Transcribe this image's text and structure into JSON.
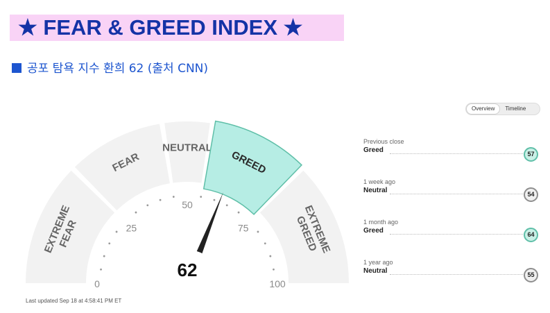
{
  "banner": {
    "title": "★ FEAR & GREED INDEX ★"
  },
  "subtitle": {
    "text": "공포 탐욕 지수 환희 62 (출처 CNN)"
  },
  "view_toggle": {
    "options": [
      "Overview",
      "Timeline"
    ],
    "selected": "Overview"
  },
  "gauge": {
    "value": 62,
    "min": 0,
    "max": 100,
    "ticks": [
      "0",
      "25",
      "50",
      "75",
      "100"
    ],
    "segments": [
      {
        "label_lines": [
          "EXTREME",
          "FEAR"
        ],
        "range": [
          0,
          25
        ]
      },
      {
        "label_lines": [
          "FEAR"
        ],
        "range": [
          25,
          45
        ]
      },
      {
        "label_lines": [
          "NEUTRAL"
        ],
        "range": [
          45,
          55
        ]
      },
      {
        "label_lines": [
          "GREED"
        ],
        "range": [
          55,
          75
        ]
      },
      {
        "label_lines": [
          "EXTREME",
          "GREED"
        ],
        "range": [
          75,
          100
        ]
      }
    ],
    "active_segment": 3,
    "colors": {
      "segment": "#f2f2f2",
      "active": "#b6ede4",
      "active_border": "#5fbfa8",
      "needle": "#222222",
      "label": "#666666"
    }
  },
  "history": [
    {
      "period": "Previous close",
      "rating": "Greed",
      "value": "57",
      "level": "greed"
    },
    {
      "period": "1 week ago",
      "rating": "Neutral",
      "value": "54",
      "level": "neutral"
    },
    {
      "period": "1 month ago",
      "rating": "Greed",
      "value": "64",
      "level": "greed"
    },
    {
      "period": "1 year ago",
      "rating": "Neutral",
      "value": "55",
      "level": "neutral"
    }
  ],
  "footer": {
    "last_updated": "Last updated Sep 18 at 4:58:41 PM ET"
  }
}
